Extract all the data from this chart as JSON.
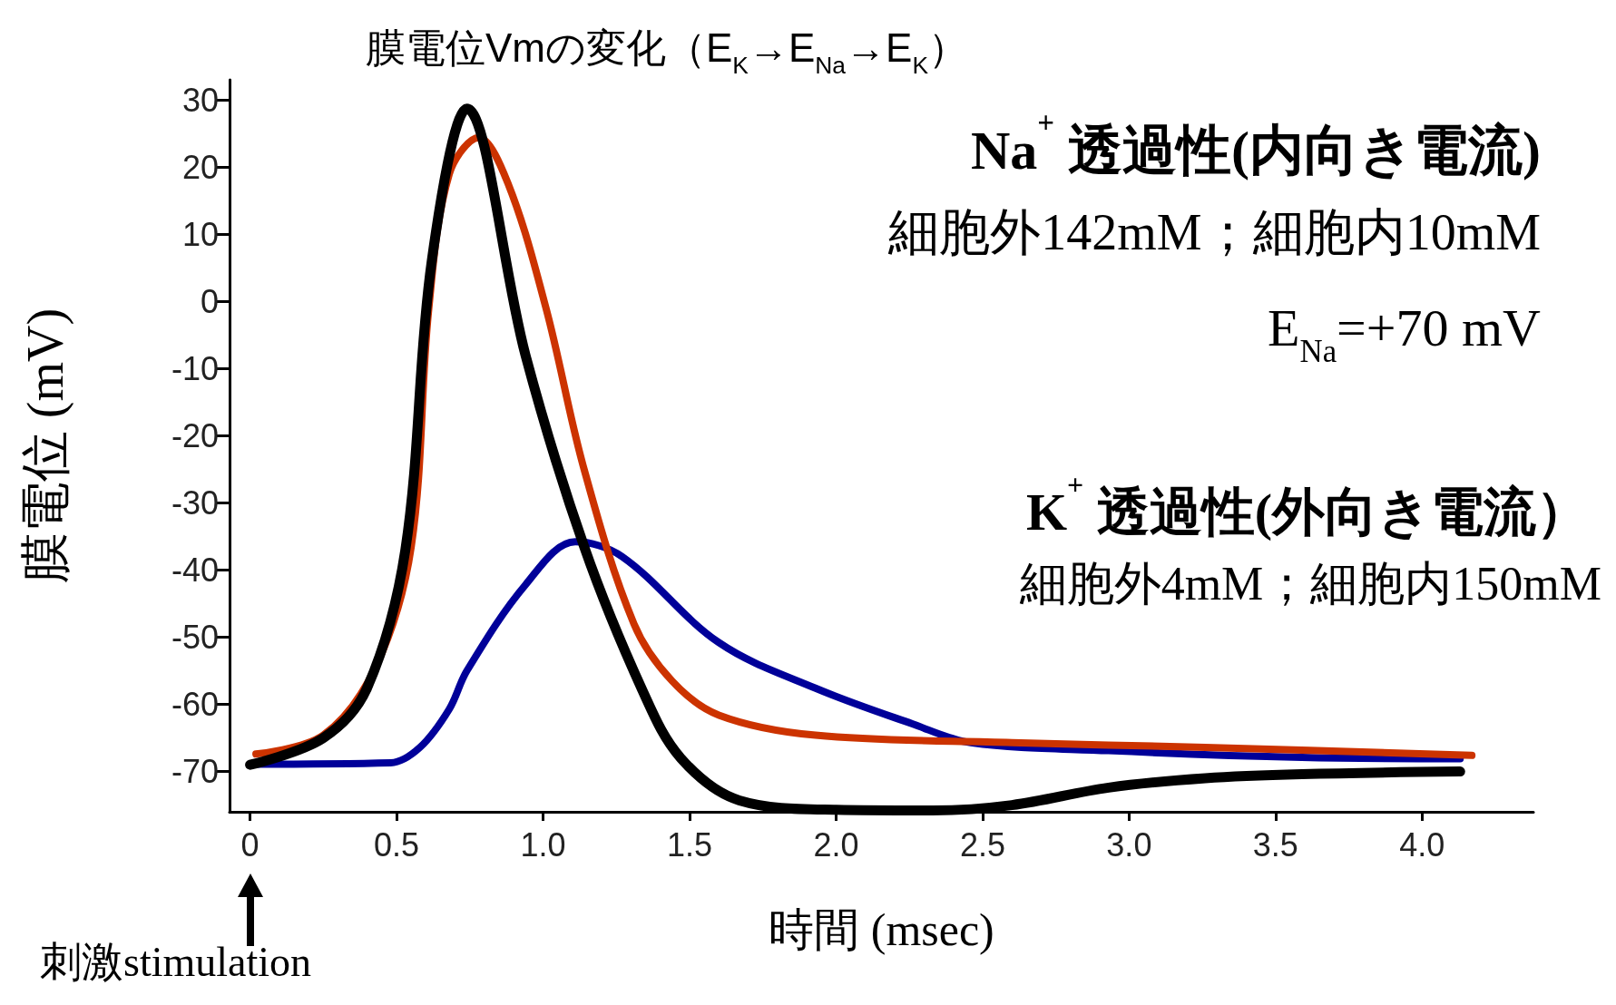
{
  "chart_data": {
    "type": "line",
    "title": "膜電位Vmの変化（E$_{K}$→E$_{Na}$→E$_{K}$）",
    "xlabel": "時間 (msec)",
    "ylabel": "膜電位 (mV)",
    "xlim": [
      -0.07,
      4.38
    ],
    "ylim": [
      -76,
      33
    ],
    "xticks": [
      {
        "value": 0,
        "label": "0"
      },
      0.5,
      {
        "value": 1,
        "label": "1.0"
      },
      1.5,
      {
        "value": 2,
        "label": "2.0"
      },
      2.5,
      {
        "value": 3,
        "label": "3.0"
      },
      3.5,
      {
        "value": 4,
        "label": "4.0"
      }
    ],
    "yticks": [
      -70,
      -60,
      -50,
      -40,
      -30,
      -20,
      -10,
      0,
      10,
      20,
      30
    ],
    "grid": false,
    "marker": "none",
    "line_style": "solid",
    "series": [
      {
        "color": "#000000",
        "x": [
          0,
          0.25,
          0.4,
          0.53,
          0.62,
          0.74,
          0.94,
          1.14,
          1.34,
          1.47,
          1.67,
          2.0,
          2.33,
          2.6,
          2.93,
          3.26,
          3.59,
          4.13
        ],
        "values": [
          -69,
          -65,
          -57.5,
          -37,
          6,
          28.7,
          -8,
          -36.5,
          -58,
          -68,
          -74.3,
          -75.7,
          -75.8,
          -75,
          -72.4,
          -71,
          -70.4,
          -70
        ]
      },
      {
        "color": "#cc3300",
        "x": [
          0.02,
          0.25,
          0.43,
          0.55,
          0.61,
          0.68,
          0.78,
          0.88,
          1.01,
          1.14,
          1.31,
          1.44,
          1.6,
          1.93,
          2.6,
          3.26,
          4.17
        ],
        "values": [
          -67.4,
          -64.6,
          -54.3,
          -36.5,
          -1,
          19,
          24.4,
          17.6,
          -1,
          -25,
          -48,
          -56.5,
          -61.6,
          -64.6,
          -65.7,
          -66.4,
          -67.6
        ]
      },
      {
        "color": "#000099",
        "x": [
          0,
          0.48,
          0.58,
          0.68,
          0.74,
          0.94,
          1.11,
          1.27,
          1.6,
          1.93,
          2.26,
          2.46,
          2.93,
          3.59,
          4.13
        ],
        "values": [
          -68.9,
          -68.7,
          -66.4,
          -60.7,
          -55,
          -42.2,
          -35.8,
          -38,
          -50.8,
          -57.6,
          -62.9,
          -65.7,
          -66.9,
          -67.9,
          -68.1
        ]
      }
    ],
    "annotations": [
      "Na$^{+}$ 透過性(内向き電流)",
      "細胞外142mM；細胞内10mM",
      "E$_{Na}$=+70 mV",
      "K$^{+}$ 透過性(外向き電流）",
      "細胞外4mM；細胞内150mM",
      "刺激stimulation"
    ]
  }
}
